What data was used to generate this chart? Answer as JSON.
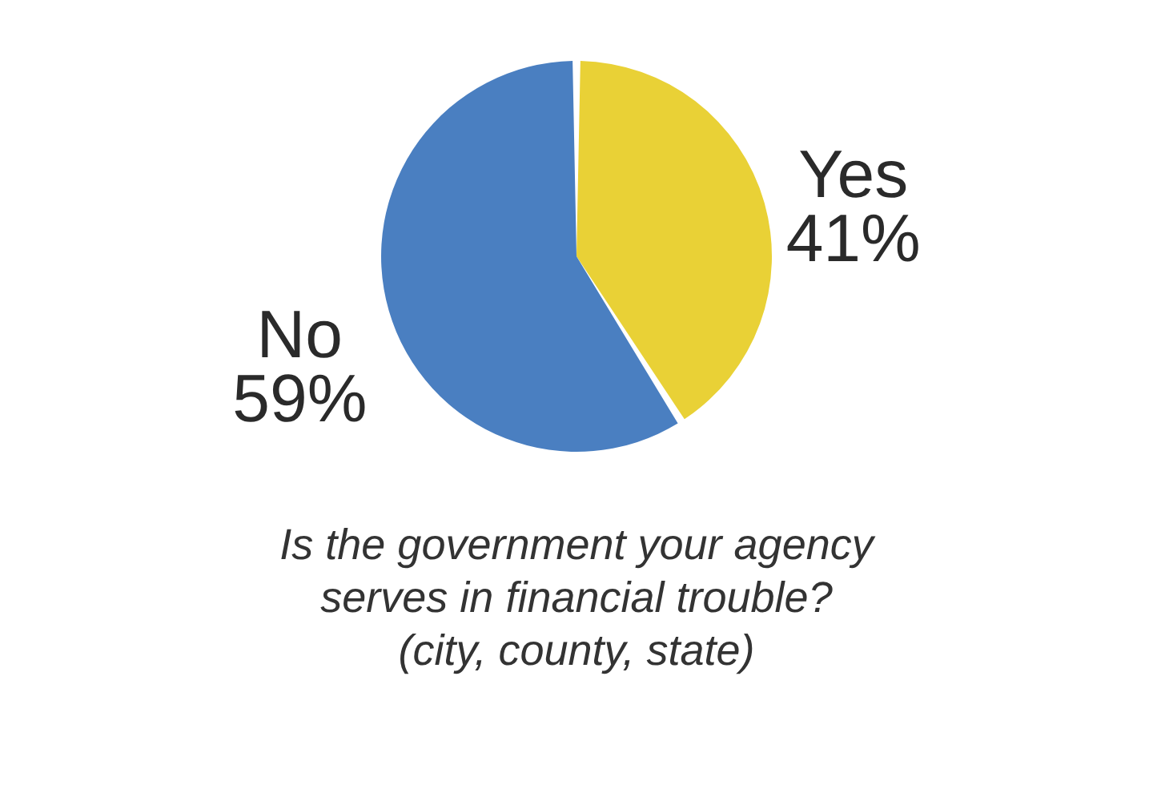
{
  "chart_data": {
    "type": "pie",
    "title": "Is the government your agency serves in financial trouble? (city, county, state)",
    "categories": [
      "Yes",
      "No"
    ],
    "values": [
      41,
      59
    ],
    "colors": [
      "#e9d136",
      "#4a7fc1"
    ],
    "value_labels": [
      "41%",
      "59%"
    ]
  }
}
